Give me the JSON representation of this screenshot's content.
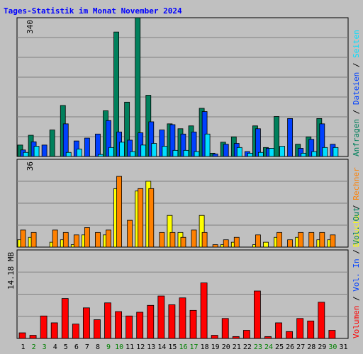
{
  "title": "Tages-Statistik im Monat November 2024",
  "colors": {
    "title": "#0000ff",
    "plot_bg": "#c0c0c0",
    "grid": "#808080",
    "anfragen": "#00805c",
    "dateien": "#0040ff",
    "seiten": "#00e0ff",
    "besuche": "#ffff00",
    "rechner": "#ff8000",
    "volumen": "#ff0000",
    "weekend": "#008000",
    "weekday": "#000000"
  },
  "panels": {
    "top": {
      "scale_label": "340",
      "legend": [
        "Anfragen",
        "Dateien",
        "Seiten"
      ],
      "separator": " / "
    },
    "middle": {
      "scale_label": "36",
      "legend": [
        "Besuche",
        "Rechner"
      ],
      "separator": " / "
    },
    "bottom": {
      "scale_label": "14.18 MB",
      "legend": [
        "Volumen",
        "Vol. In",
        "Vol. Out"
      ],
      "separator": " / "
    }
  },
  "chart_data": [
    {
      "type": "bar",
      "title": "Tages-Statistik im Monat November 2024",
      "categories": [
        "1",
        "2",
        "3",
        "4",
        "5",
        "6",
        "7",
        "8",
        "9",
        "10",
        "11",
        "12",
        "13",
        "14",
        "15",
        "16",
        "17",
        "18",
        "19",
        "20",
        "21",
        "22",
        "23",
        "24",
        "25",
        "26",
        "27",
        "28",
        "29",
        "30",
        "31"
      ],
      "weekend_days": [
        "2",
        "3",
        "9",
        "10",
        "16",
        "17",
        "23",
        "24",
        "30"
      ],
      "ylim": [
        0,
        340
      ],
      "series": [
        {
          "name": "Anfragen",
          "values": [
            28,
            52,
            0,
            65,
            125,
            0,
            0,
            0,
            112,
            305,
            133,
            340,
            150,
            0,
            80,
            68,
            75,
            118,
            8,
            35,
            48,
            0,
            75,
            22,
            98,
            0,
            30,
            48,
            93,
            0,
            0
          ]
        },
        {
          "name": "Dateien",
          "values": [
            16,
            36,
            28,
            0,
            80,
            38,
            45,
            55,
            88,
            60,
            40,
            58,
            85,
            65,
            78,
            55,
            60,
            110,
            6,
            30,
            32,
            12,
            68,
            20,
            0,
            93,
            20,
            42,
            80,
            30,
            0
          ]
        },
        {
          "name": "Seiten",
          "values": [
            10,
            25,
            0,
            0,
            10,
            18,
            0,
            5,
            22,
            35,
            12,
            28,
            32,
            25,
            15,
            15,
            12,
            55,
            0,
            0,
            22,
            8,
            10,
            20,
            25,
            0,
            8,
            12,
            22,
            22,
            0
          ]
        }
      ]
    },
    {
      "type": "bar",
      "ylim": [
        0,
        36
      ],
      "series": [
        {
          "name": "Besuche",
          "values": [
            3,
            4,
            0,
            2,
            3,
            1,
            5,
            0,
            5,
            24,
            0,
            23,
            27,
            0,
            13,
            6,
            0,
            13,
            0,
            1,
            2,
            0,
            1,
            2,
            4,
            0,
            4,
            0,
            3,
            3,
            0
          ]
        },
        {
          "name": "Rechner",
          "values": [
            7,
            6,
            0,
            7,
            6,
            5,
            8,
            6,
            7,
            29,
            11,
            24,
            24,
            6,
            6,
            4,
            7,
            6,
            1,
            3,
            4,
            0,
            5,
            0,
            6,
            3,
            6,
            6,
            6,
            5,
            0
          ]
        }
      ]
    },
    {
      "type": "bar",
      "ylim": [
        0,
        14.18
      ],
      "ylabel": "14.18 MB",
      "series": [
        {
          "name": "Volumen",
          "values": [
            0.9,
            0.5,
            3.6,
            2.5,
            6.4,
            2.3,
            4.9,
            3.0,
            5.7,
            4.3,
            3.6,
            4.2,
            5.3,
            6.8,
            5.4,
            6.5,
            4.5,
            8.9,
            0.5,
            3.2,
            0.3,
            1.3,
            7.6,
            0.3,
            2.5,
            1.1,
            3.2,
            2.8,
            5.8,
            1.3,
            0
          ]
        }
      ]
    }
  ]
}
